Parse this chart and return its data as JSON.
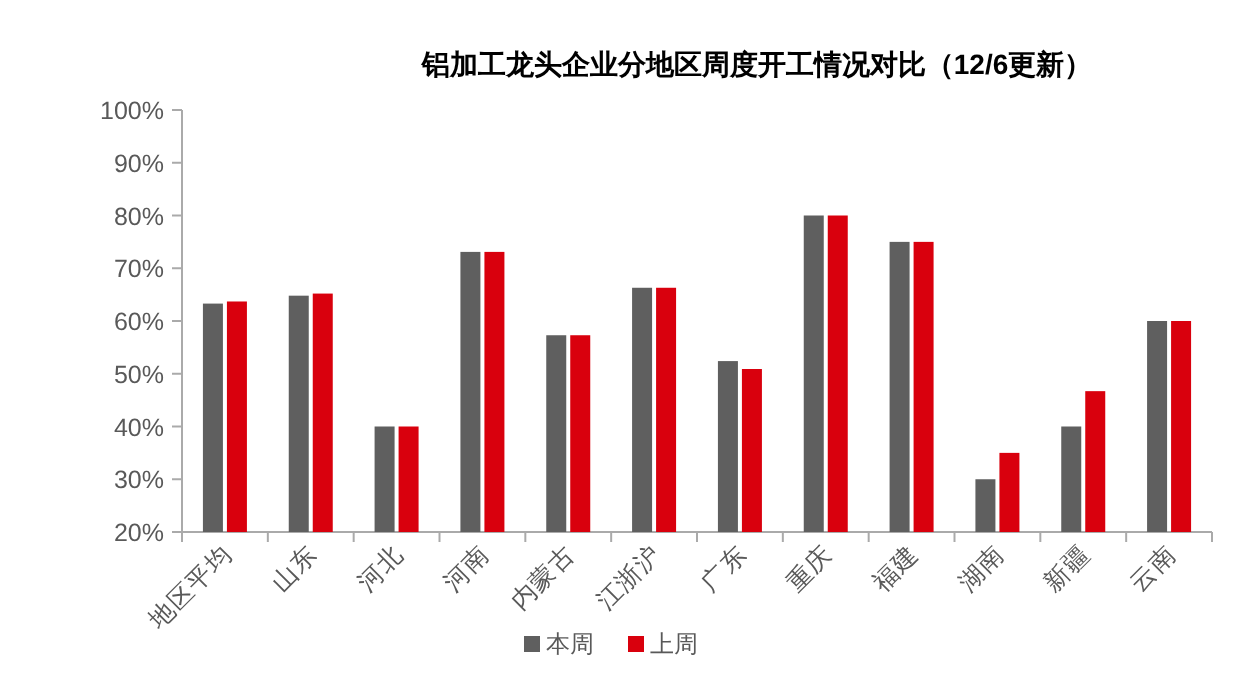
{
  "chart_data": {
    "type": "bar",
    "title": "铝加工龙头企业分地区周度开工情况对比（12/6更新）",
    "categories": [
      "地区平均",
      "山东",
      "河北",
      "河南",
      "内蒙古",
      "江浙沪",
      "广东",
      "重庆",
      "福建",
      "湖南",
      "新疆",
      "云南"
    ],
    "series": [
      {
        "name": "本周",
        "color": "#5f5f5f",
        "values": [
          63.3,
          64.8,
          40,
          73.1,
          57.3,
          66.3,
          52.4,
          80,
          75,
          30,
          40,
          60
        ]
      },
      {
        "name": "上周",
        "color": "#d9000d",
        "values": [
          63.7,
          65.2,
          40,
          73.1,
          57.3,
          66.3,
          50.9,
          80,
          75,
          35,
          46.7,
          60
        ]
      }
    ],
    "ylim": [
      20,
      100
    ],
    "yticks": [
      {
        "value": 20,
        "label": "20%"
      },
      {
        "value": 30,
        "label": "30%"
      },
      {
        "value": 40,
        "label": "40%"
      },
      {
        "value": 50,
        "label": "50%"
      },
      {
        "value": 60,
        "label": "60%"
      },
      {
        "value": 70,
        "label": "70%"
      },
      {
        "value": 80,
        "label": "80%"
      },
      {
        "value": 90,
        "label": "90%"
      },
      {
        "value": 100,
        "label": "100%"
      }
    ],
    "grid": false,
    "legend": "bottom"
  }
}
